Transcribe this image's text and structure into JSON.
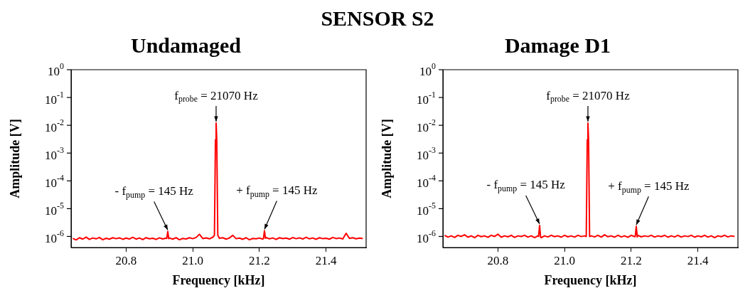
{
  "chart_data": [
    {
      "type": "line",
      "title": "Undamaged",
      "xlabel": "Frequency [kHz]",
      "ylabel": "Amplitude [V]",
      "log": "y",
      "xlim": [
        20.635,
        21.52
      ],
      "xticks": [
        20.8,
        {
          "value": 21,
          "label": "21.0"
        },
        21.2,
        21.4
      ],
      "ylim": [
        4e-07,
        1
      ],
      "yticks": [
        {
          "value": 1e-06,
          "label": "10$^{-6}$"
        },
        {
          "value": 1e-05,
          "label": "10$^{-5}$"
        },
        {
          "value": 0.0001,
          "label": "10$^{-4}$"
        },
        {
          "value": 0.001,
          "label": "10$^{-3}$"
        },
        {
          "value": 0.01,
          "label": "10$^{-2}$"
        },
        {
          "value": 0.1,
          "label": "10$^{-1}$"
        },
        {
          "value": 1,
          "label": "10$^{0}$"
        }
      ],
      "legend": false,
      "marker": "none",
      "line_style": "solid",
      "annotations": [
        "SENSOR S2",
        {
          "text": "f$_{probe}$ = 21070 Hz",
          "x": 21.07,
          "y": 0.012
        },
        {
          "text": "- f$_{pump}$ = 145 Hz",
          "x": 20.925,
          "y": 1.5e-06
        },
        {
          "text": "+ f$_{pump}$ = 145 Hz",
          "x": 21.215,
          "y": 1.6e-06
        }
      ],
      "series": [
        {
          "color": "#ff0000",
          "x": [
            20.64,
            20.65,
            20.66,
            20.67,
            20.68,
            20.69,
            20.7,
            20.71,
            20.72,
            20.73,
            20.74,
            20.75,
            20.76,
            20.77,
            20.78,
            20.79,
            20.8,
            20.81,
            20.82,
            20.83,
            20.84,
            20.85,
            20.86,
            20.87,
            20.88,
            20.89,
            20.9,
            20.91,
            20.92,
            20.922,
            20.925,
            20.928,
            20.93,
            20.94,
            20.95,
            20.96,
            20.97,
            20.98,
            20.99,
            21.0,
            21.01,
            21.02,
            21.03,
            21.04,
            21.05,
            21.06,
            21.065,
            21.068,
            21.07,
            21.072,
            21.075,
            21.08,
            21.09,
            21.1,
            21.11,
            21.12,
            21.13,
            21.14,
            21.15,
            21.16,
            21.17,
            21.18,
            21.19,
            21.2,
            21.21,
            21.212,
            21.215,
            21.218,
            21.22,
            21.23,
            21.24,
            21.25,
            21.26,
            21.27,
            21.28,
            21.29,
            21.3,
            21.31,
            21.32,
            21.33,
            21.34,
            21.35,
            21.36,
            21.37,
            21.38,
            21.39,
            21.4,
            21.41,
            21.42,
            21.43,
            21.44,
            21.45,
            21.46,
            21.47,
            21.48,
            21.49,
            21.5,
            21.51
          ],
          "values": [
            8.5e-07,
            7.5e-07,
            9e-07,
            8e-07,
            9.5e-07,
            7.8e-07,
            8.8e-07,
            8.2e-07,
            9.2e-07,
            7.6e-07,
            8.6e-07,
            8e-07,
            9e-07,
            8.3e-07,
            8.9e-07,
            7.9e-07,
            8.7e-07,
            8.1e-07,
            9.3e-07,
            8e-07,
            8.8e-07,
            7.7e-07,
            9e-07,
            8.2e-07,
            8.6e-07,
            7.8e-07,
            8.9e-07,
            8.1e-07,
            8.7e-07,
            8.5e-07,
            1.5e-06,
            8.3e-07,
            8.8e-07,
            8e-07,
            9.1e-07,
            7.6e-07,
            8.5e-07,
            8.1e-07,
            9e-07,
            8.3e-07,
            9.2e-07,
            1.2e-06,
            8.4e-07,
            8.9e-07,
            8.2e-07,
            9.4e-07,
            1.1e-06,
            0.003,
            0.012,
            0.003,
            1.1e-06,
            8.6e-07,
            9e-07,
            8e-07,
            8.8e-07,
            1.1e-06,
            8.3e-07,
            8.7e-07,
            7.9e-07,
            9e-07,
            7.6e-07,
            8.5e-07,
            8.2e-07,
            8.8e-07,
            8e-07,
            8.4e-07,
            1.6e-06,
            8.6e-07,
            9.1e-07,
            8.2e-07,
            8.8e-07,
            7.8e-07,
            9e-07,
            8.4e-07,
            8.7e-07,
            8e-07,
            9.1e-07,
            8.3e-07,
            8.9e-07,
            8.1e-07,
            9.3e-07,
            8.2e-07,
            8.8e-07,
            7.9e-07,
            9e-07,
            8.3e-07,
            8.6e-07,
            8e-07,
            9.2e-07,
            8.4e-07,
            8.8e-07,
            8.1e-07,
            1.3e-06,
            8.5e-07,
            9e-07,
            8.2e-07,
            8.7e-07,
            8.4e-07
          ]
        }
      ]
    },
    {
      "type": "line",
      "title": "Damage D1",
      "xlabel": "Frequency [kHz]",
      "ylabel": "Amplitude [V]",
      "log": "y",
      "xlim": [
        20.635,
        21.52
      ],
      "xticks": [
        20.8,
        {
          "value": 21,
          "label": "21.0"
        },
        21.2,
        21.4
      ],
      "ylim": [
        4e-07,
        1
      ],
      "yticks": [
        {
          "value": 1e-06,
          "label": "10$^{-6}$"
        },
        {
          "value": 1e-05,
          "label": "10$^{-5}$"
        },
        {
          "value": 0.0001,
          "label": "10$^{-4}$"
        },
        {
          "value": 0.001,
          "label": "10$^{-3}$"
        },
        {
          "value": 0.01,
          "label": "10$^{-2}$"
        },
        {
          "value": 0.1,
          "label": "10$^{-1}$"
        },
        {
          "value": 1,
          "label": "10$^{0}$"
        }
      ],
      "legend": false,
      "marker": "none",
      "line_style": "solid",
      "annotations": [
        {
          "text": "f$_{probe}$ = 21070 Hz",
          "x": 21.07,
          "y": 0.012
        },
        {
          "text": "- f$_{pump}$ = 145 Hz",
          "x": 20.925,
          "y": 2.5e-06
        },
        {
          "text": "+ f$_{pump}$ = 145 Hz",
          "x": 21.215,
          "y": 2.3e-06
        }
      ],
      "series": [
        {
          "color": "#ff0000",
          "x": [
            20.64,
            20.65,
            20.66,
            20.67,
            20.68,
            20.69,
            20.7,
            20.71,
            20.72,
            20.73,
            20.74,
            20.75,
            20.76,
            20.77,
            20.78,
            20.79,
            20.8,
            20.81,
            20.82,
            20.83,
            20.84,
            20.85,
            20.86,
            20.87,
            20.88,
            20.89,
            20.9,
            20.91,
            20.92,
            20.922,
            20.925,
            20.928,
            20.93,
            20.94,
            20.95,
            20.96,
            20.97,
            20.98,
            20.99,
            21.0,
            21.01,
            21.02,
            21.03,
            21.04,
            21.05,
            21.06,
            21.065,
            21.068,
            21.07,
            21.072,
            21.075,
            21.08,
            21.09,
            21.1,
            21.11,
            21.12,
            21.13,
            21.14,
            21.15,
            21.16,
            21.17,
            21.18,
            21.19,
            21.2,
            21.21,
            21.212,
            21.215,
            21.218,
            21.22,
            21.23,
            21.24,
            21.25,
            21.26,
            21.27,
            21.28,
            21.29,
            21.3,
            21.31,
            21.32,
            21.33,
            21.34,
            21.35,
            21.36,
            21.37,
            21.38,
            21.39,
            21.4,
            21.41,
            21.42,
            21.43,
            21.44,
            21.45,
            21.46,
            21.47,
            21.48,
            21.49,
            21.5,
            21.51
          ],
          "values": [
            1.1e-06,
            9.5e-07,
            1.05e-06,
            9.2e-07,
            1.1e-06,
            1e-06,
            1.15e-06,
            9.4e-07,
            1.05e-06,
            9e-07,
            1.1e-06,
            9.8e-07,
            1.05e-06,
            9.3e-07,
            1.1e-06,
            1e-06,
            1.2e-06,
            9.4e-07,
            1.05e-06,
            9.7e-07,
            1.1e-06,
            9.2e-07,
            1.05e-06,
            1e-06,
            1.1e-06,
            9.5e-07,
            1.05e-06,
            9.1e-07,
            1.05e-06,
            1e-06,
            2.5e-06,
            9.5e-07,
            9e-07,
            1.05e-06,
            9.6e-07,
            1.1e-06,
            9.8e-07,
            1.05e-06,
            9.4e-07,
            1.1e-06,
            9.7e-07,
            1.05e-06,
            9.5e-07,
            1.1e-06,
            9.9e-07,
            1.05e-06,
            1e-06,
            0.003,
            0.012,
            0.003,
            1e-06,
            1.05e-06,
            9.6e-07,
            1.1e-06,
            9.5e-07,
            1.15e-06,
            9.8e-07,
            1.05e-06,
            9.4e-07,
            1.1e-06,
            9.6e-07,
            1.05e-06,
            9.3e-07,
            1.1e-06,
            9.8e-07,
            1e-06,
            2.3e-06,
            9.6e-07,
            1.1e-06,
            9.7e-07,
            1.05e-06,
            9.9e-07,
            1.1e-06,
            9.5e-07,
            1.05e-06,
            9.8e-07,
            1.1e-06,
            9.4e-07,
            1.05e-06,
            9.6e-07,
            1.1e-06,
            9.5e-07,
            1.05e-06,
            9.9e-07,
            1.1e-06,
            9.4e-07,
            1.05e-06,
            9.7e-07,
            1.1e-06,
            9.5e-07,
            1.05e-06,
            9e-07,
            1.05e-06,
            9.8e-07,
            1.1e-06,
            9.6e-07,
            1.05e-06,
            1e-06
          ]
        }
      ]
    }
  ]
}
